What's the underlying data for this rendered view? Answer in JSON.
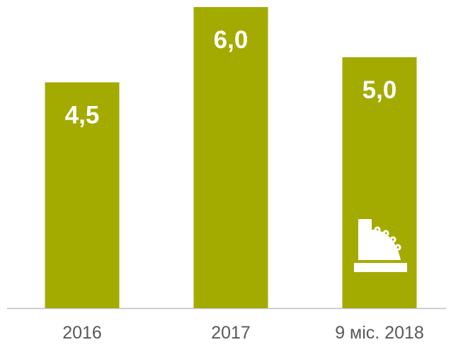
{
  "chart_data": {
    "type": "bar",
    "categories": [
      "2016",
      "2017",
      "9 міс. 2018"
    ],
    "values": [
      4.5,
      6.0,
      5.0
    ],
    "value_labels": [
      "4,5",
      "6,0",
      "5,0"
    ],
    "color": "#a3ab00"
  }
}
